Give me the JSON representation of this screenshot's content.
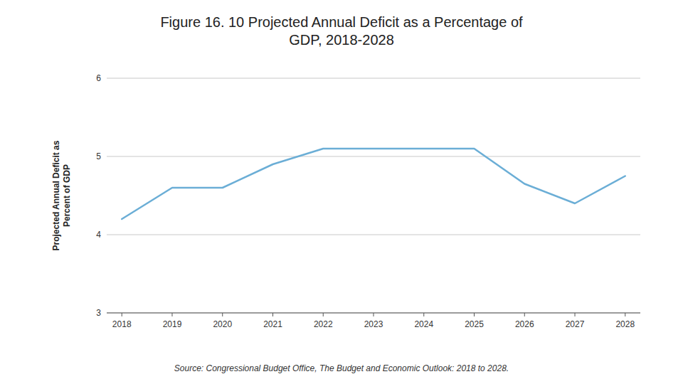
{
  "chart_data": {
    "type": "line",
    "title": "Figure 16. 10 Projected Annual Deficit as a Percentage of\nGDP, 2018-2028",
    "y_label": "Projected Annual Deficit as\nPercent of GDP",
    "source": "Source: Congressional Budget Office, The Budget and Economic Outlook: 2018 to 2028.",
    "x": [
      2018,
      2019,
      2020,
      2021,
      2022,
      2023,
      2024,
      2025,
      2026,
      2027,
      2028
    ],
    "values": [
      4.2,
      4.6,
      4.6,
      4.9,
      5.1,
      5.1,
      5.1,
      5.1,
      4.65,
      4.4,
      4.75
    ],
    "color": "#6baed6",
    "xlim": [
      2017.7,
      2028.3
    ],
    "xticks": [
      2018,
      2019,
      2020,
      2021,
      2022,
      2023,
      2024,
      2025,
      2026,
      2027,
      2028
    ],
    "ylim": [
      3,
      6
    ],
    "yticks": [
      3,
      4,
      5,
      6
    ],
    "grid": true
  }
}
